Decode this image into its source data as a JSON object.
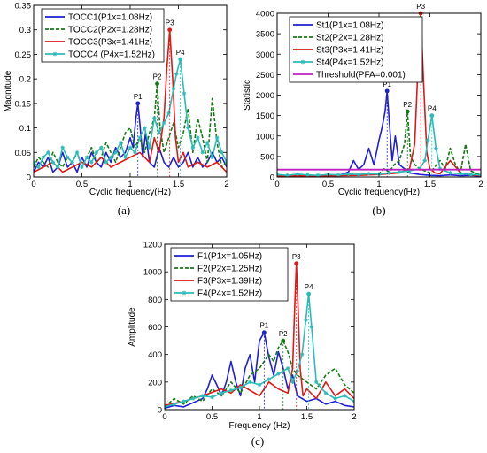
{
  "colors": {
    "blue": "#1f1fd6",
    "green": "#157a15",
    "red": "#e01818",
    "cyan": "#2bbcb8",
    "magenta": "#c020c0"
  },
  "chart_data": [
    {
      "id": "a",
      "type": "line",
      "caption": "(a)",
      "xlabel": "Cyclic frequency(Hz)",
      "ylabel": "Magnitude",
      "xlim": [
        0,
        2
      ],
      "ylim": [
        0,
        0.35
      ],
      "xticks": [
        0,
        0.5,
        1,
        1.5,
        2
      ],
      "xtick_labels": [
        "0",
        "0.5",
        "1",
        "1.5",
        "2"
      ],
      "yticks": [
        0,
        0.05,
        0.1,
        0.15,
        0.2,
        0.25,
        0.3,
        0.35
      ],
      "ytick_labels": [
        "0",
        "0.05",
        "0.1",
        "0.15",
        "0.2",
        "0.25",
        "0.3",
        "0.35"
      ],
      "legend_position": "top-left",
      "series": [
        {
          "name": "TOCC1(P1x=1.08Hz)",
          "color": "blue",
          "style": "solid",
          "marker": "",
          "x": [
            0,
            0.05,
            0.1,
            0.15,
            0.2,
            0.25,
            0.3,
            0.35,
            0.4,
            0.45,
            0.5,
            0.55,
            0.6,
            0.65,
            0.7,
            0.75,
            0.8,
            0.85,
            0.9,
            0.95,
            1.0,
            1.03,
            1.06,
            1.08,
            1.1,
            1.13,
            1.16,
            1.2,
            1.25,
            1.3,
            1.35,
            1.4,
            1.45,
            1.5,
            1.55,
            1.6,
            1.65,
            1.7,
            1.75,
            1.8,
            1.85,
            1.9,
            1.95,
            2.0
          ],
          "y": [
            0.01,
            0.03,
            0.02,
            0.04,
            0.01,
            0.02,
            0.05,
            0.02,
            0.03,
            0.01,
            0.04,
            0.02,
            0.05,
            0.03,
            0.02,
            0.05,
            0.03,
            0.06,
            0.04,
            0.05,
            0.08,
            0.06,
            0.12,
            0.15,
            0.11,
            0.04,
            0.09,
            0.03,
            0.02,
            0.06,
            0.03,
            0.02,
            0.04,
            0.02,
            0.03,
            0.05,
            0.02,
            0.04,
            0.02,
            0.03,
            0.05,
            0.03,
            0.04,
            0.02
          ]
        },
        {
          "name": "TOCC2(P2x=1.28Hz)",
          "color": "green",
          "style": "dashed",
          "marker": "",
          "x": [
            0,
            0.05,
            0.1,
            0.15,
            0.2,
            0.25,
            0.3,
            0.35,
            0.4,
            0.45,
            0.5,
            0.55,
            0.6,
            0.65,
            0.7,
            0.75,
            0.8,
            0.85,
            0.9,
            0.95,
            1.0,
            1.05,
            1.1,
            1.15,
            1.2,
            1.25,
            1.28,
            1.31,
            1.35,
            1.4,
            1.45,
            1.5,
            1.55,
            1.6,
            1.65,
            1.7,
            1.75,
            1.8,
            1.85,
            1.9,
            1.95,
            2.0
          ],
          "y": [
            0.02,
            0.04,
            0.03,
            0.02,
            0.05,
            0.03,
            0.02,
            0.04,
            0.03,
            0.05,
            0.02,
            0.04,
            0.06,
            0.03,
            0.04,
            0.07,
            0.05,
            0.03,
            0.06,
            0.09,
            0.1,
            0.06,
            0.08,
            0.05,
            0.09,
            0.12,
            0.19,
            0.1,
            0.05,
            0.08,
            0.11,
            0.06,
            0.09,
            0.14,
            0.05,
            0.12,
            0.08,
            0.03,
            0.16,
            0.07,
            0.02,
            0.03
          ]
        },
        {
          "name": "TOCC3(P3x=1.41Hz)",
          "color": "red",
          "style": "solid",
          "marker": "",
          "x": [
            0,
            0.1,
            0.2,
            0.3,
            0.4,
            0.5,
            0.6,
            0.7,
            0.8,
            0.9,
            1.0,
            1.1,
            1.2,
            1.25,
            1.3,
            1.35,
            1.38,
            1.41,
            1.44,
            1.47,
            1.5,
            1.55,
            1.6,
            1.7,
            1.8,
            1.9,
            2.0
          ],
          "y": [
            0.01,
            0.02,
            0.03,
            0.01,
            0.02,
            0.03,
            0.02,
            0.04,
            0.02,
            0.03,
            0.04,
            0.05,
            0.03,
            0.08,
            0.05,
            0.12,
            0.22,
            0.3,
            0.2,
            0.08,
            0.03,
            0.05,
            0.02,
            0.03,
            0.02,
            0.03,
            0.01
          ]
        },
        {
          "name": "TOCC4 (P4x=1.52Hz)",
          "color": "cyan",
          "style": "solid",
          "marker": "star",
          "x": [
            0,
            0.05,
            0.1,
            0.15,
            0.2,
            0.25,
            0.3,
            0.35,
            0.4,
            0.45,
            0.5,
            0.55,
            0.6,
            0.65,
            0.7,
            0.75,
            0.8,
            0.85,
            0.9,
            0.95,
            1.0,
            1.05,
            1.1,
            1.15,
            1.2,
            1.25,
            1.3,
            1.35,
            1.4,
            1.45,
            1.48,
            1.52,
            1.56,
            1.6,
            1.65,
            1.7,
            1.75,
            1.8,
            1.85,
            1.9,
            1.95,
            2.0
          ],
          "y": [
            0.03,
            0.02,
            0.04,
            0.05,
            0.03,
            0.02,
            0.06,
            0.04,
            0.03,
            0.05,
            0.02,
            0.04,
            0.03,
            0.05,
            0.06,
            0.03,
            0.04,
            0.05,
            0.07,
            0.04,
            0.06,
            0.05,
            0.08,
            0.1,
            0.06,
            0.12,
            0.09,
            0.11,
            0.13,
            0.18,
            0.21,
            0.24,
            0.17,
            0.1,
            0.06,
            0.08,
            0.05,
            0.07,
            0.04,
            0.08,
            0.05,
            0.03
          ]
        }
      ],
      "peaks": [
        {
          "label": "P1",
          "x": 1.08,
          "y": 0.15,
          "color": "blue"
        },
        {
          "label": "P2",
          "x": 1.28,
          "y": 0.19,
          "color": "green"
        },
        {
          "label": "P3",
          "x": 1.41,
          "y": 0.3,
          "color": "red"
        },
        {
          "label": "P4",
          "x": 1.52,
          "y": 0.24,
          "color": "cyan"
        }
      ]
    },
    {
      "id": "b",
      "type": "line",
      "caption": "(b)",
      "xlabel": "Cyclic frequency(Hz)",
      "ylabel": "Statistic",
      "xlim": [
        0,
        2
      ],
      "ylim": [
        0,
        4000
      ],
      "xticks": [
        0,
        0.5,
        1,
        1.5,
        2
      ],
      "xtick_labels": [
        "0",
        "0.5",
        "1",
        "1.5",
        "2"
      ],
      "yticks": [
        0,
        500,
        1000,
        1500,
        2000,
        2500,
        3000,
        3500,
        4000
      ],
      "ytick_labels": [
        "0",
        "500",
        "1000",
        "1500",
        "2000",
        "2500",
        "3000",
        "3500",
        "4000"
      ],
      "legend_position": "top-left",
      "series": [
        {
          "name": "St1(P1x=1.08Hz)",
          "color": "blue",
          "style": "solid",
          "marker": "",
          "x": [
            0,
            0.1,
            0.2,
            0.3,
            0.4,
            0.5,
            0.6,
            0.7,
            0.75,
            0.8,
            0.85,
            0.9,
            0.95,
            1.0,
            1.03,
            1.06,
            1.08,
            1.1,
            1.13,
            1.16,
            1.2,
            1.25,
            1.3,
            1.4,
            1.5,
            1.6,
            1.7,
            1.8,
            1.9,
            2.0
          ],
          "y": [
            30,
            20,
            40,
            25,
            30,
            50,
            30,
            120,
            400,
            180,
            300,
            700,
            300,
            900,
            1200,
            1600,
            2100,
            1400,
            400,
            1000,
            300,
            200,
            100,
            60,
            40,
            30,
            50,
            30,
            40,
            20
          ]
        },
        {
          "name": "St2(P2x=1.28Hz)",
          "color": "green",
          "style": "dashed",
          "marker": "",
          "x": [
            0,
            0.1,
            0.2,
            0.3,
            0.4,
            0.5,
            0.6,
            0.7,
            0.8,
            0.9,
            1.0,
            1.05,
            1.1,
            1.15,
            1.2,
            1.25,
            1.28,
            1.31,
            1.35,
            1.4,
            1.5,
            1.6,
            1.65,
            1.7,
            1.75,
            1.8,
            1.85,
            1.9,
            2.0
          ],
          "y": [
            20,
            40,
            20,
            30,
            20,
            40,
            30,
            50,
            40,
            60,
            80,
            200,
            120,
            300,
            400,
            800,
            1600,
            500,
            300,
            200,
            100,
            400,
            200,
            700,
            300,
            100,
            800,
            150,
            40
          ]
        },
        {
          "name": "St3(P3x=1.41Hz)",
          "color": "red",
          "style": "solid",
          "marker": "",
          "x": [
            0,
            0.2,
            0.4,
            0.6,
            0.8,
            1.0,
            1.1,
            1.2,
            1.3,
            1.35,
            1.38,
            1.41,
            1.44,
            1.47,
            1.5,
            1.55,
            1.6,
            1.7,
            1.8,
            1.9,
            2.0
          ],
          "y": [
            20,
            30,
            20,
            30,
            40,
            60,
            80,
            100,
            200,
            800,
            2500,
            4000,
            2200,
            600,
            200,
            100,
            80,
            400,
            100,
            50,
            30
          ]
        },
        {
          "name": "St4(P4x=1.52Hz)",
          "color": "cyan",
          "style": "solid",
          "marker": "star",
          "x": [
            0,
            0.1,
            0.2,
            0.3,
            0.4,
            0.5,
            0.6,
            0.7,
            0.8,
            0.9,
            1.0,
            1.1,
            1.2,
            1.3,
            1.4,
            1.45,
            1.48,
            1.52,
            1.56,
            1.6,
            1.7,
            1.8,
            1.9,
            2.0
          ],
          "y": [
            60,
            40,
            70,
            50,
            40,
            60,
            50,
            70,
            60,
            80,
            70,
            100,
            120,
            150,
            200,
            400,
            900,
            1500,
            700,
            200,
            100,
            80,
            60,
            50
          ]
        },
        {
          "name": "Threshold(PFA=0.001)",
          "color": "magenta",
          "style": "solid",
          "marker": "",
          "x": [
            0,
            2
          ],
          "y": [
            180,
            180
          ]
        }
      ],
      "peaks": [
        {
          "label": "P1",
          "x": 1.08,
          "y": 2100,
          "color": "blue"
        },
        {
          "label": "P2",
          "x": 1.28,
          "y": 1600,
          "color": "green"
        },
        {
          "label": "P3",
          "x": 1.41,
          "y": 4000,
          "color": "red"
        },
        {
          "label": "P4",
          "x": 1.52,
          "y": 1500,
          "color": "cyan"
        }
      ]
    },
    {
      "id": "c",
      "type": "line",
      "caption": "(c)",
      "xlabel": "Frequency (Hz)",
      "ylabel": "Amplitude",
      "xlim": [
        0,
        2
      ],
      "ylim": [
        0,
        1200
      ],
      "xticks": [
        0,
        0.5,
        1,
        1.5,
        2
      ],
      "xtick_labels": [
        "0",
        "0.5",
        "1",
        "1.5",
        "2"
      ],
      "yticks": [
        0,
        200,
        400,
        600,
        800,
        1000,
        1200
      ],
      "ytick_labels": [
        "0",
        "200",
        "400",
        "600",
        "800",
        "1000",
        "1200"
      ],
      "legend_position": "top-left",
      "series": [
        {
          "name": "F1(P1x=1.05Hz)",
          "color": "blue",
          "style": "solid",
          "marker": "",
          "x": [
            0,
            0.1,
            0.2,
            0.3,
            0.4,
            0.45,
            0.5,
            0.55,
            0.6,
            0.65,
            0.7,
            0.75,
            0.8,
            0.85,
            0.9,
            0.95,
            1.0,
            1.05,
            1.1,
            1.15,
            1.2,
            1.25,
            1.3,
            1.35,
            1.4,
            1.5,
            1.6,
            1.7,
            1.8,
            1.9,
            2.0
          ],
          "y": [
            10,
            30,
            20,
            50,
            80,
            150,
            250,
            180,
            100,
            200,
            350,
            200,
            100,
            300,
            400,
            200,
            500,
            560,
            380,
            250,
            420,
            300,
            150,
            250,
            100,
            60,
            80,
            40,
            60,
            30,
            20
          ]
        },
        {
          "name": "F2(P2x=1.25Hz)",
          "color": "green",
          "style": "dashed",
          "marker": "",
          "x": [
            0,
            0.1,
            0.2,
            0.3,
            0.4,
            0.5,
            0.6,
            0.7,
            0.8,
            0.9,
            1.0,
            1.1,
            1.15,
            1.2,
            1.25,
            1.3,
            1.35,
            1.4,
            1.5,
            1.6,
            1.7,
            1.8,
            1.9,
            2.0
          ],
          "y": [
            20,
            80,
            40,
            100,
            60,
            150,
            100,
            200,
            120,
            250,
            300,
            400,
            350,
            450,
            500,
            420,
            300,
            250,
            200,
            150,
            250,
            300,
            180,
            120
          ]
        },
        {
          "name": "F3(P3x=1.39Hz)",
          "color": "red",
          "style": "solid",
          "marker": "",
          "x": [
            0,
            0.2,
            0.4,
            0.6,
            0.7,
            0.8,
            0.9,
            1.0,
            1.1,
            1.2,
            1.3,
            1.35,
            1.37,
            1.39,
            1.41,
            1.43,
            1.46,
            1.5,
            1.6,
            1.7,
            1.8,
            1.9,
            2.0
          ],
          "y": [
            30,
            60,
            100,
            150,
            120,
            180,
            140,
            100,
            200,
            150,
            120,
            300,
            700,
            1060,
            700,
            300,
            100,
            150,
            80,
            200,
            100,
            150,
            80
          ]
        },
        {
          "name": "F4(P4x=1.52Hz)",
          "color": "cyan",
          "style": "solid",
          "marker": "star",
          "x": [
            0,
            0.1,
            0.2,
            0.3,
            0.4,
            0.5,
            0.6,
            0.7,
            0.8,
            0.9,
            1.0,
            1.1,
            1.2,
            1.3,
            1.35,
            1.4,
            1.45,
            1.49,
            1.52,
            1.55,
            1.6,
            1.7,
            1.8,
            1.9,
            2.0
          ],
          "y": [
            20,
            40,
            60,
            80,
            100,
            90,
            120,
            140,
            160,
            200,
            180,
            220,
            260,
            300,
            200,
            280,
            400,
            650,
            840,
            600,
            200,
            120,
            80,
            100,
            60
          ]
        }
      ],
      "peaks": [
        {
          "label": "P1",
          "x": 1.05,
          "y": 560,
          "color": "blue"
        },
        {
          "label": "P2",
          "x": 1.25,
          "y": 500,
          "color": "green"
        },
        {
          "label": "P3",
          "x": 1.39,
          "y": 1060,
          "color": "red"
        },
        {
          "label": "P4",
          "x": 1.52,
          "y": 840,
          "color": "cyan"
        }
      ]
    }
  ]
}
